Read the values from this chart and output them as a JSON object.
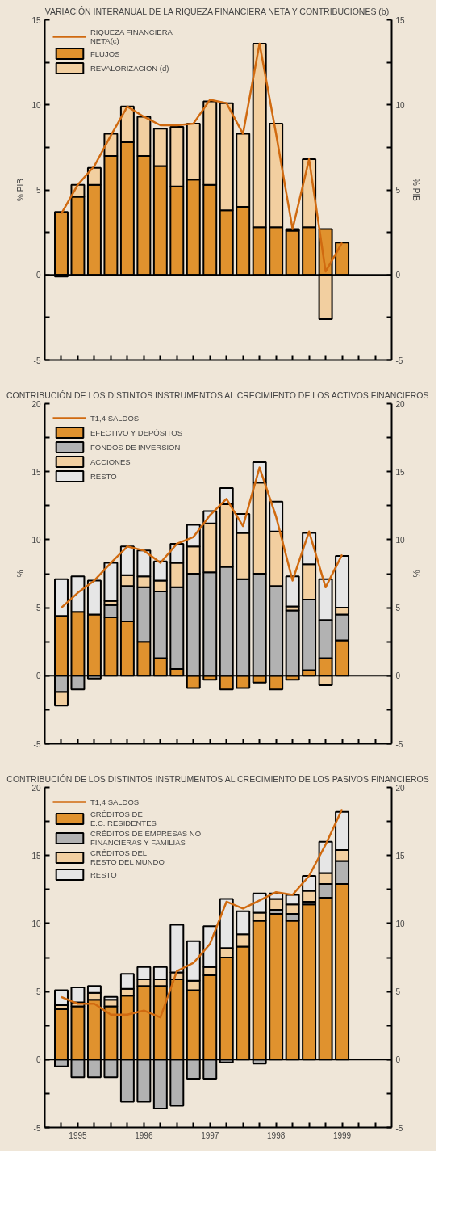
{
  "chart_data": [
    {
      "type": "bar",
      "stacked": true,
      "title": "VARIACIÓN INTERANUAL DE LA RIQUEZA FINANCIERA NETA Y CONTRIBUCIONES (b)",
      "ylabel": "% PIB",
      "y2label": "% PIB",
      "categories": [
        null,
        null,
        null,
        null,
        null,
        null,
        null,
        null,
        null,
        null,
        null,
        null,
        null,
        null,
        null,
        null,
        null,
        null,
        null,
        null
      ],
      "series": [
        {
          "name": "RIQUEZA FINANCIERA NETA(c)",
          "type": "line",
          "color": "#d06a10",
          "values": [
            3.6,
            5.3,
            6.4,
            8.2,
            9.9,
            9.3,
            8.8,
            8.8,
            8.9,
            10.3,
            10.1,
            8.3,
            13.6,
            8.3,
            2.7,
            6.8,
            0.2,
            1.9,
            null,
            null
          ]
        },
        {
          "name": "FLUJOS",
          "color": "#e0922e",
          "values": [
            3.7,
            4.6,
            5.3,
            7.0,
            7.8,
            7.0,
            6.4,
            5.2,
            5.6,
            5.3,
            3.8,
            4.0,
            2.8,
            2.8,
            2.6,
            2.8,
            2.7,
            1.9,
            null,
            null
          ]
        },
        {
          "name": "REVALORIZACIÓN (d)",
          "color": "#f2cfa0",
          "values": [
            -0.1,
            0.7,
            1.0,
            1.3,
            2.1,
            2.3,
            2.2,
            3.5,
            3.3,
            4.9,
            6.3,
            4.3,
            10.8,
            6.1,
            0.1,
            4.0,
            -2.6,
            null,
            null,
            null
          ]
        }
      ],
      "ylim": [
        -5,
        15
      ],
      "yticks": [
        -5,
        {
          "value": -2.5,
          "label": null
        },
        0,
        {
          "value": 2.5,
          "label": null
        },
        5,
        {
          "value": 7.5,
          "label": null
        },
        10,
        {
          "value": 12.5,
          "label": null
        },
        15
      ],
      "y2lim": [
        -5,
        15
      ],
      "y2ticks": [
        -5,
        {
          "value": -2.5,
          "label": null
        },
        0,
        {
          "value": 2.5,
          "label": null
        },
        5,
        {
          "value": 7.5,
          "label": null
        },
        10,
        {
          "value": 12.5,
          "label": null
        },
        15
      ],
      "ref_lines": [
        {
          "axis": "y",
          "value": 0,
          "label": null,
          "color": "#000000"
        }
      ],
      "tick_labels": "y",
      "legend": "top left"
    },
    {
      "type": "bar",
      "stacked": true,
      "title": "CONTRIBUCIÓN DE LOS DISTINTOS INSTRUMENTOS AL CRECIMIENTO DE LOS ACTIVOS FINANCIEROS",
      "ylabel": "%",
      "y2label": "%",
      "categories": [
        null,
        null,
        null,
        null,
        null,
        null,
        null,
        null,
        null,
        null,
        null,
        null,
        null,
        null,
        null,
        null,
        null,
        null,
        null,
        null
      ],
      "series": [
        {
          "name": "T1,4 SALDOS",
          "type": "line",
          "color": "#d06a10",
          "values": [
            5.0,
            6.1,
            7.0,
            8.3,
            9.5,
            9.2,
            8.3,
            9.7,
            10.2,
            11.8,
            13.0,
            11.0,
            15.3,
            11.7,
            7.0,
            10.6,
            6.5,
            8.9,
            null,
            null
          ]
        },
        {
          "name": "EFECTIVO Y DEPÓSITOS",
          "color": "#e0922e",
          "values": [
            4.4,
            4.7,
            4.5,
            4.3,
            4.0,
            2.5,
            1.3,
            0.5,
            -0.9,
            -0.3,
            -1.0,
            -0.9,
            -0.5,
            -1.0,
            -0.3,
            0.4,
            1.3,
            2.6,
            null,
            null
          ]
        },
        {
          "name": "FONDOS DE INVERSIÓN",
          "color": "#b2b2b2",
          "values": [
            -1.2,
            -1.0,
            -0.2,
            0.9,
            2.6,
            4.0,
            4.9,
            6.0,
            7.5,
            7.6,
            8.0,
            7.1,
            7.5,
            6.6,
            4.8,
            5.2,
            2.8,
            1.9,
            null,
            null
          ]
        },
        {
          "name": "ACCIONES",
          "color": "#f2cfa0",
          "values": [
            -1.0,
            null,
            null,
            0.3,
            0.8,
            0.8,
            0.8,
            1.8,
            2.0,
            3.6,
            4.6,
            3.4,
            6.7,
            4.0,
            0.3,
            2.6,
            -0.7,
            0.5,
            null,
            null
          ]
        },
        {
          "name": "RESTO",
          "color": "#e6e6e6",
          "values": [
            2.7,
            2.6,
            2.5,
            2.8,
            2.1,
            1.9,
            1.4,
            1.4,
            1.6,
            0.9,
            1.2,
            1.4,
            1.5,
            2.2,
            2.2,
            2.3,
            3.0,
            3.8,
            null,
            null
          ]
        }
      ],
      "ylim": [
        -5,
        20
      ],
      "yticks": [
        -5,
        {
          "value": -2.5,
          "label": null
        },
        0,
        {
          "value": 2.5,
          "label": null
        },
        5,
        {
          "value": 7.5,
          "label": null
        },
        10,
        {
          "value": 12.5,
          "label": null
        },
        15,
        {
          "value": 17.5,
          "label": null
        },
        20
      ],
      "y2lim": [
        -5,
        20
      ],
      "y2ticks": [
        -5,
        {
          "value": -2.5,
          "label": null
        },
        0,
        {
          "value": 2.5,
          "label": null
        },
        5,
        {
          "value": 7.5,
          "label": null
        },
        10,
        {
          "value": 12.5,
          "label": null
        },
        15,
        {
          "value": 17.5,
          "label": null
        },
        20
      ],
      "ref_lines": [
        {
          "axis": "y",
          "value": 0,
          "label": null,
          "color": "#000000"
        }
      ],
      "tick_labels": "y",
      "legend": "top left"
    },
    {
      "type": "bar",
      "stacked": true,
      "title": "CONTRIBUCIÓN DE LOS DISTINTOS INSTRUMENTOS AL CRECIMIENTO DE LOS PASIVOS FINANCIEROS",
      "categories": [
        null,
        "1995",
        null,
        null,
        null,
        "1996",
        null,
        null,
        null,
        "1997",
        null,
        null,
        null,
        "1998",
        null,
        null,
        null,
        "1999",
        null,
        null
      ],
      "series": [
        {
          "name": "T1,4 SALDOS",
          "type": "line",
          "color": "#d06a10",
          "values": [
            4.6,
            4.1,
            4.1,
            3.3,
            3.3,
            3.6,
            3.1,
            6.5,
            7.1,
            8.5,
            11.6,
            11.1,
            11.7,
            12.3,
            12.1,
            13.5,
            15.8,
            18.4,
            null,
            null
          ]
        },
        {
          "name": "CRÉDITOS DE E.C. RESIDENTES",
          "color": "#e0922e",
          "values": [
            3.7,
            3.9,
            4.4,
            3.9,
            4.7,
            5.4,
            5.4,
            5.9,
            5.1,
            6.2,
            7.5,
            8.3,
            10.2,
            10.7,
            10.2,
            11.4,
            11.9,
            12.9,
            null,
            null
          ]
        },
        {
          "name": "CRÉDITOS DE EMPRESAS NO FINANCIERAS Y FAMILIAS",
          "color": "#b2b2b2",
          "values": [
            -0.5,
            -1.3,
            -1.3,
            -1.3,
            -3.1,
            -3.1,
            -3.6,
            -3.4,
            -1.4,
            -1.4,
            -0.2,
            null,
            -0.3,
            0.3,
            0.5,
            0.2,
            1.0,
            1.7,
            null,
            null
          ]
        },
        {
          "name": "CRÉDITOS DEL RESTO DEL MUNDO",
          "color": "#f2cfa0",
          "values": [
            0.3,
            0.3,
            0.5,
            0.5,
            0.5,
            0.5,
            0.5,
            0.5,
            0.7,
            0.6,
            0.7,
            0.9,
            0.6,
            0.8,
            0.7,
            0.8,
            0.8,
            0.8,
            null,
            null
          ]
        },
        {
          "name": "RESTO",
          "color": "#e6e6e6",
          "values": [
            1.1,
            1.1,
            0.5,
            0.2,
            1.1,
            0.9,
            0.9,
            3.5,
            2.9,
            3.0,
            3.6,
            1.7,
            1.4,
            0.4,
            0.7,
            1.1,
            2.3,
            2.8,
            null,
            null
          ]
        }
      ],
      "ylim": [
        -5,
        20
      ],
      "yticks": [
        -5,
        {
          "value": -2.5,
          "label": null
        },
        0,
        {
          "value": 2.5,
          "label": null
        },
        5,
        {
          "value": 7.5,
          "label": null
        },
        10,
        {
          "value": 12.5,
          "label": null
        },
        15,
        {
          "value": 17.5,
          "label": null
        },
        20
      ],
      "y2lim": [
        -5,
        20
      ],
      "y2ticks": [
        -5,
        {
          "value": -2.5,
          "label": null
        },
        0,
        {
          "value": 2.5,
          "label": null
        },
        5,
        {
          "value": 7.5,
          "label": null
        },
        10,
        {
          "value": 12.5,
          "label": null
        },
        15,
        {
          "value": 17.5,
          "label": null
        },
        20
      ],
      "ref_lines": [
        {
          "axis": "y",
          "value": 0,
          "label": null,
          "color": "#000000"
        }
      ],
      "legend": "top left"
    }
  ]
}
